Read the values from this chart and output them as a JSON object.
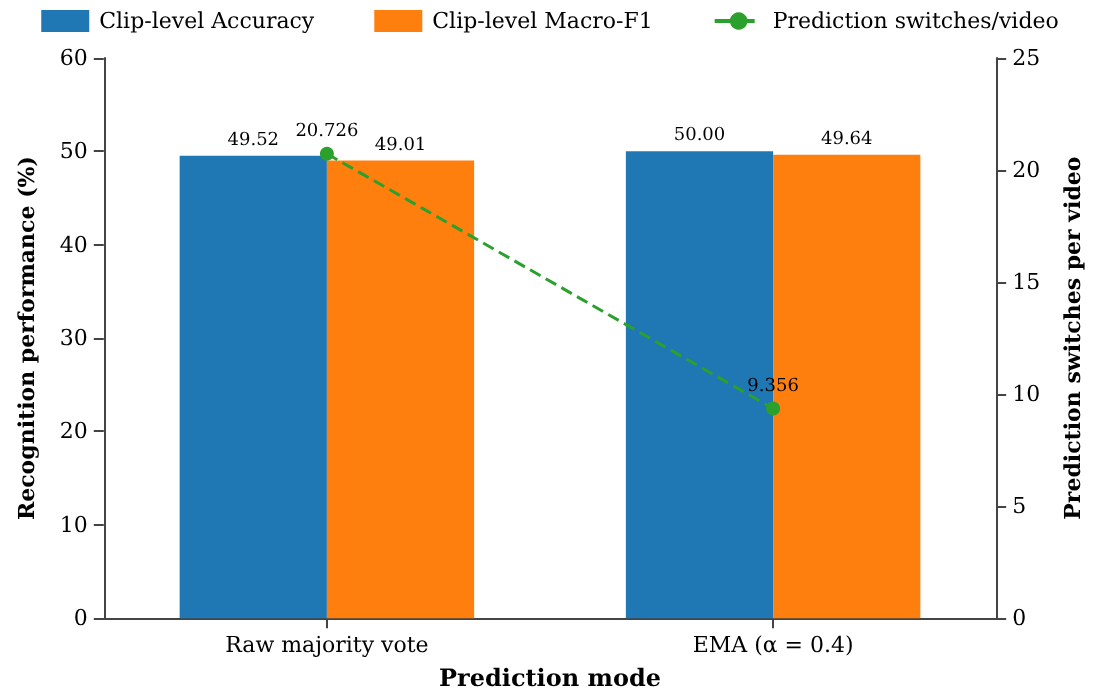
{
  "chart_data": {
    "type": "bar",
    "xlabel": "Prediction mode",
    "ylabel": "Recognition performance (%)",
    "y2label": "Prediction switches per video",
    "categories": [
      "Raw majority vote",
      "EMA (α = 0.4)"
    ],
    "series": [
      {
        "name": "Clip-level Accuracy",
        "color": "#1f77b4",
        "values": [
          49.52,
          50.0
        ],
        "value_labels": [
          "49.52",
          "50.00"
        ]
      },
      {
        "name": "Clip-level Macro-F1",
        "color": "#ff7f0e",
        "values": [
          49.01,
          49.64
        ],
        "value_labels": [
          "49.01",
          "49.64"
        ]
      },
      {
        "name": "Prediction switches/video",
        "type": "line",
        "axis": "y2",
        "color": "#2ca02c",
        "marker": "circle",
        "line_style": "dashed",
        "values": [
          20.726,
          9.356
        ],
        "value_labels": [
          "20.726",
          "9.356"
        ]
      }
    ],
    "ylim": [
      0,
      60
    ],
    "yticks": [
      0,
      10,
      20,
      30,
      40,
      50,
      60
    ],
    "y2lim": [
      0,
      25
    ],
    "y2ticks": [
      0,
      5,
      10,
      15,
      20,
      25
    ],
    "grid": false,
    "legend": "top"
  }
}
